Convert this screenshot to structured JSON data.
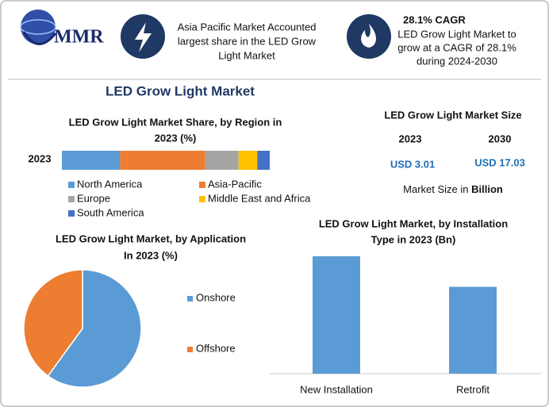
{
  "header": {
    "logo": "MMR",
    "info_1": [
      "Asia Pacific Market Accounted",
      "largest share in the LED Grow",
      "Light Market"
    ],
    "info_2_title": "28.1% CAGR",
    "info_2": [
      "LED Grow Light Market to",
      "grow at a CAGR of 28.1%",
      "during 2024-2030"
    ]
  },
  "title": "LED Grow Light Market",
  "market_size": {
    "title": "LED Grow Light Market Size",
    "years": [
      "2023",
      "2030"
    ],
    "values": [
      "USD 3.01",
      "USD 17.03"
    ],
    "note": "Market Size in ",
    "note_unit": "Billion"
  },
  "chart_data": [
    {
      "type": "stacked-bar",
      "title": [
        "LED Grow Light Market Share, by Region in",
        "2023 (%)"
      ],
      "categories": [
        "2023"
      ],
      "series": [
        {
          "name": "North America",
          "color": "#5b9bd5",
          "values": [
            28
          ]
        },
        {
          "name": "Asia-Pacific",
          "color": "#ed7d31",
          "values": [
            41
          ]
        },
        {
          "name": "Europe",
          "color": "#a5a5a5",
          "values": [
            16
          ]
        },
        {
          "name": "Middle East and Africa",
          "color": "#ffc000",
          "values": [
            9
          ]
        },
        {
          "name": "South America",
          "color": "#4472c4",
          "values": [
            6
          ]
        }
      ]
    },
    {
      "type": "pie",
      "title": [
        "LED Grow Light Market, by Application",
        "In 2023 (%)"
      ],
      "categories": [
        "Onshore",
        "Offshore"
      ],
      "values": [
        60,
        40
      ],
      "colors": [
        "#5b9bd5",
        "#ed7d31"
      ]
    },
    {
      "type": "bar",
      "title": [
        "LED Grow Light Market, by Installation",
        "Type in 2023 (Bn)"
      ],
      "categories": [
        "New Installation",
        "Retrofit"
      ],
      "values": [
        1.73,
        1.28
      ],
      "color": "#5b9bd5"
    }
  ]
}
